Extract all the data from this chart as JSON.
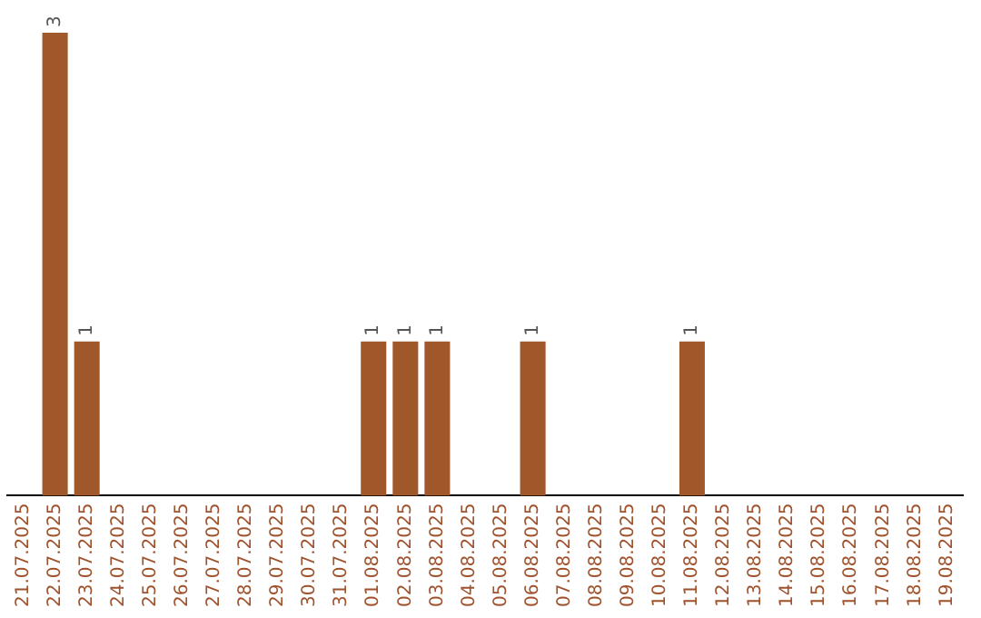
{
  "chart_data": {
    "type": "bar",
    "categories": [
      "21.07.2025",
      "22.07.2025",
      "23.07.2025",
      "24.07.2025",
      "25.07.2025",
      "26.07.2025",
      "27.07.2025",
      "28.07.2025",
      "29.07.2025",
      "30.07.2025",
      "31.07.2025",
      "01.08.2025",
      "02.08.2025",
      "03.08.2025",
      "04.08.2025",
      "05.08.2025",
      "06.08.2025",
      "07.08.2025",
      "08.08.2025",
      "09.08.2025",
      "10.08.2025",
      "11.08.2025",
      "12.08.2025",
      "13.08.2025",
      "14.08.2025",
      "15.08.2025",
      "16.08.2025",
      "17.08.2025",
      "18.08.2025",
      "19.08.2025"
    ],
    "values": [
      0,
      3,
      1,
      0,
      0,
      0,
      0,
      0,
      0,
      0,
      0,
      1,
      1,
      1,
      0,
      0,
      1,
      0,
      0,
      0,
      0,
      1,
      0,
      0,
      0,
      0,
      0,
      0,
      0,
      0
    ],
    "value_labels": [
      null,
      "3",
      "1",
      null,
      null,
      null,
      null,
      null,
      null,
      null,
      null,
      "1",
      "1",
      "1",
      null,
      null,
      "1",
      null,
      null,
      null,
      null,
      "1",
      null,
      null,
      null,
      null,
      null,
      null,
      null,
      null
    ],
    "color": "#a0582a",
    "grid": false,
    "legend": false
  }
}
